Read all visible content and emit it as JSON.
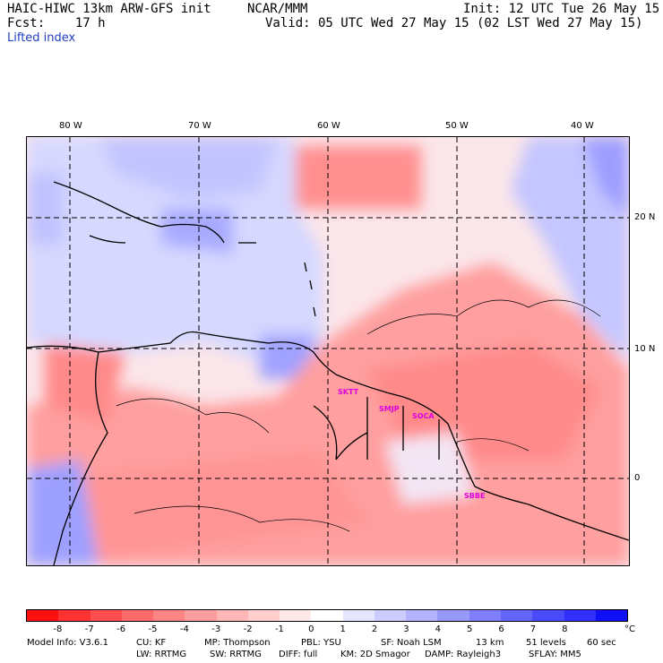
{
  "header": {
    "model": "HAIC-HIWC 13km ARW-GFS init",
    "org": "NCAR/MMM",
    "init": "Init: 12 UTC Tue 26 May 15",
    "fcst": "Fcst:    17 h",
    "valid": "Valid: 05 UTC Wed 27 May 15 (02 LST Wed 27 May 15)",
    "field": "Lifted index"
  },
  "map": {
    "lon_labels": [
      "80 W",
      "70 W",
      "60 W",
      "50 W",
      "40 W"
    ],
    "lat_labels": [
      "20 N",
      "10 N",
      "0"
    ],
    "stations": [
      "SKTT",
      "SMJP",
      "SOCA",
      "SBBE"
    ]
  },
  "colorbar": {
    "labels": [
      "-8",
      "-7",
      "-6",
      "-5",
      "-4",
      "-3",
      "-2",
      "-1",
      "0",
      "1",
      "2",
      "3",
      "4",
      "5",
      "6",
      "7",
      "8"
    ],
    "unit": "°C",
    "colors": [
      "#ff1010",
      "#ff3232",
      "#ff4e4e",
      "#ff6a6a",
      "#ff8484",
      "#ff9d9d",
      "#ffb6b6",
      "#ffcfcf",
      "#ffe8e8",
      "#ffffff",
      "#e6e6ff",
      "#ccccff",
      "#b2b2ff",
      "#9898ff",
      "#7e7eff",
      "#6464ff",
      "#4a4aff",
      "#3030ff",
      "#1010f8"
    ]
  },
  "footer": {
    "line1": [
      "Model Info: V3.6.1",
      "CU: KF",
      "MP: Thompson",
      "PBL: YSU",
      "SF: Noah LSM",
      "13 km",
      "51 levels",
      "60 sec"
    ],
    "line2": [
      "LW: RRTMG",
      "SW: RRTMG",
      "DIFF: full",
      "KM: 2D Smagor",
      "DAMP: Rayleigh3",
      "SFLAY: MM5"
    ]
  }
}
